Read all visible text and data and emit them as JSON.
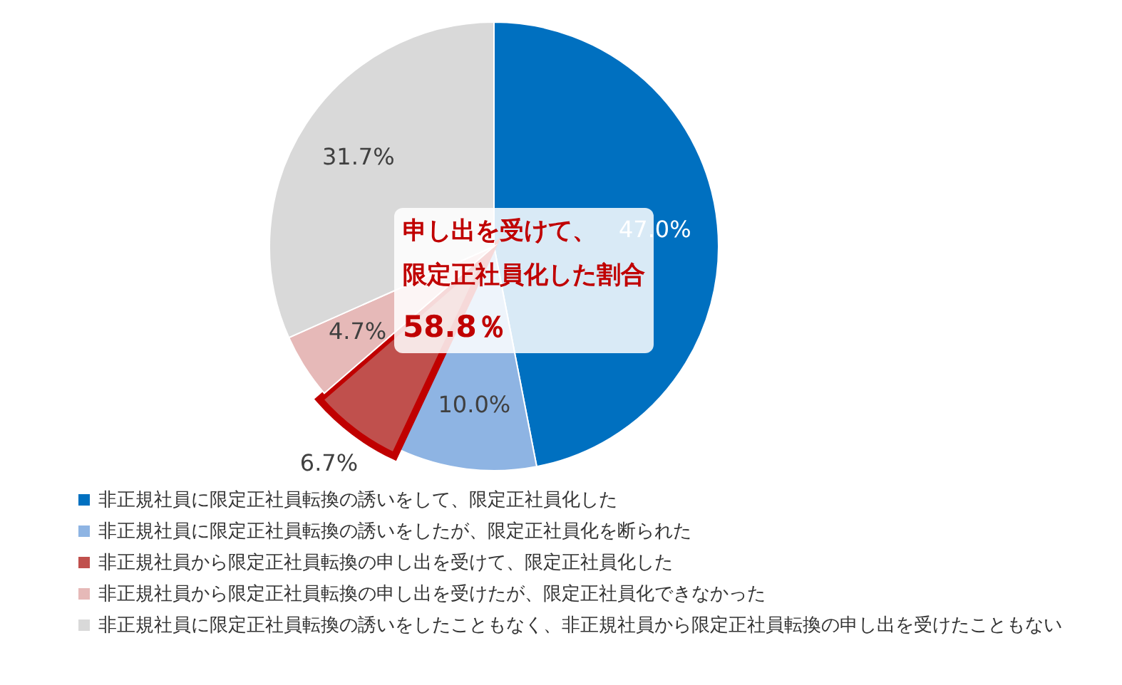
{
  "chart_data": {
    "type": "pie",
    "categories": [
      "非正規社員に限定正社員転換の誘いをして、限定正社員化した",
      "非正規社員に限定正社員転換の誘いをしたが、限定正社員化を断られた",
      "非正規社員から限定正社員転換の申し出を受けて、限定正社員化した",
      "非正規社員から限定正社員転換の申し出を受けたが、限定正社員化できなかった",
      "非正規社員に限定正社員転換の誘いをしたこともなく、非正規社員から限定正社員転換の申し出を受けたこともない"
    ],
    "values": [
      47.0,
      10.0,
      6.7,
      4.7,
      31.7
    ],
    "colors": [
      "#0070c0",
      "#8eb4e3",
      "#c0504d",
      "#e6b9b8",
      "#d9d9d9"
    ],
    "value_labels": [
      "47.0%",
      "10.0%",
      "6.7%",
      "4.7%",
      "31.7%"
    ],
    "annotations": [
      {
        "text": "申し出を受けて、限定正社員化した割合",
        "x": "非正規社員から限定正社員転換の申し出を受けて、限定正社員化した"
      },
      "58.8％"
    ],
    "legend": "bottom"
  }
}
